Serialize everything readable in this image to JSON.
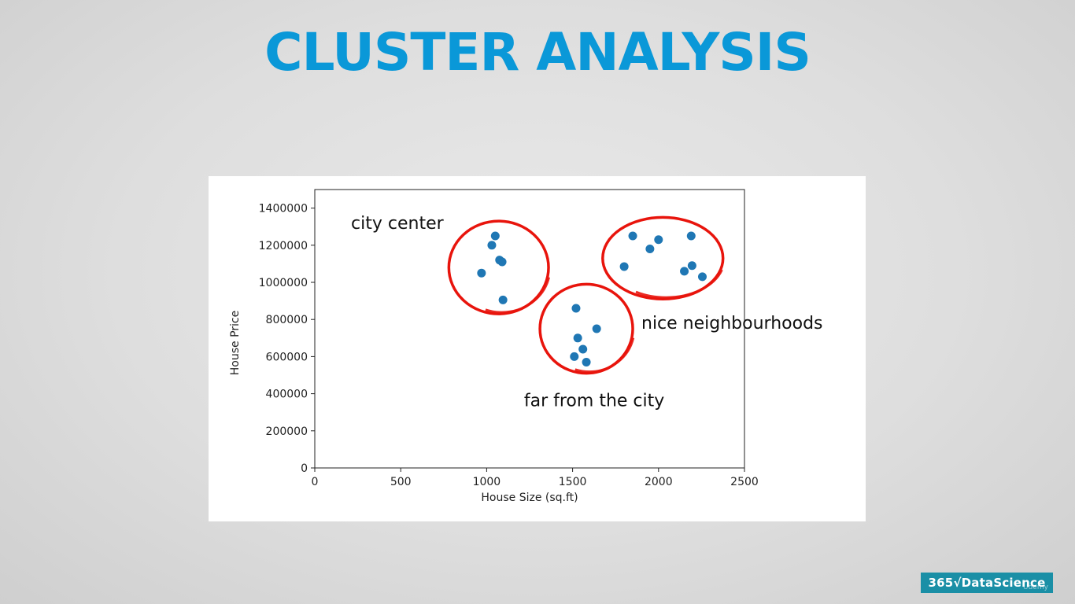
{
  "slide": {
    "title": "CLUSTER ANALYSIS"
  },
  "branding": {
    "badge": "365√DataScience",
    "watermark": "Udemy"
  },
  "colors": {
    "title": "#0a98d8",
    "points": "#1f77b4",
    "cluster_circle": "#e8140c",
    "badge": "#1a8fa6"
  },
  "chart_data": {
    "type": "scatter",
    "title": "",
    "xlabel": "House Size (sq.ft)",
    "ylabel": "House Price",
    "xlim": [
      0,
      2500
    ],
    "ylim": [
      0,
      1500000
    ],
    "xticks": [
      0,
      500,
      1000,
      1500,
      2000,
      2500
    ],
    "yticks": [
      0,
      200000,
      400000,
      600000,
      800000,
      1000000,
      1200000,
      1400000
    ],
    "grid": false,
    "points": [
      {
        "x": 970,
        "y": 1050000
      },
      {
        "x": 1030,
        "y": 1200000
      },
      {
        "x": 1050,
        "y": 1250000
      },
      {
        "x": 1075,
        "y": 1120000
      },
      {
        "x": 1090,
        "y": 1110000
      },
      {
        "x": 1095,
        "y": 905000
      },
      {
        "x": 1520,
        "y": 860000
      },
      {
        "x": 1640,
        "y": 750000
      },
      {
        "x": 1530,
        "y": 700000
      },
      {
        "x": 1560,
        "y": 640000
      },
      {
        "x": 1510,
        "y": 600000
      },
      {
        "x": 1580,
        "y": 570000
      },
      {
        "x": 1800,
        "y": 1085000
      },
      {
        "x": 1850,
        "y": 1250000
      },
      {
        "x": 1950,
        "y": 1180000
      },
      {
        "x": 2000,
        "y": 1230000
      },
      {
        "x": 2150,
        "y": 1060000
      },
      {
        "x": 2190,
        "y": 1250000
      },
      {
        "x": 2195,
        "y": 1090000
      },
      {
        "x": 2255,
        "y": 1030000
      }
    ],
    "clusters": [
      {
        "label": "city center",
        "cx": 1070,
        "cy": 1080000,
        "rx": 290,
        "ry": 250000
      },
      {
        "label": "far from the city",
        "cx": 1580,
        "cy": 750000,
        "rx": 270,
        "ry": 240000
      },
      {
        "label": "nice neighbourhoods",
        "cx": 2025,
        "cy": 1130000,
        "rx": 350,
        "ry": 220000
      }
    ]
  }
}
